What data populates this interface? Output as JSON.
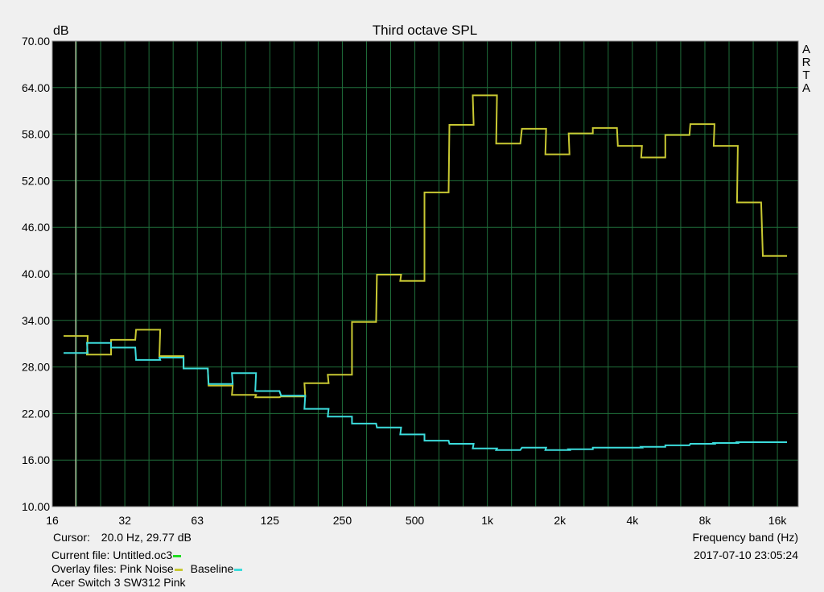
{
  "chart_data": {
    "type": "line",
    "title": "Third octave SPL",
    "ylabel": "dB",
    "xlabel": "Frequency band (Hz)",
    "ylim": [
      10,
      70
    ],
    "y_ticks": [
      "10.00",
      "16.00",
      "22.00",
      "28.00",
      "34.00",
      "40.00",
      "46.00",
      "52.00",
      "58.00",
      "64.00",
      "70.00"
    ],
    "x_ticks": [
      "16",
      "32",
      "63",
      "125",
      "250",
      "500",
      "1k",
      "2k",
      "4k",
      "8k",
      "16k"
    ],
    "bands": [
      20,
      25,
      31.5,
      40,
      50,
      63,
      80,
      100,
      125,
      160,
      200,
      250,
      315,
      400,
      500,
      630,
      800,
      1000,
      1250,
      1600,
      2000,
      2500,
      3150,
      4000,
      5000,
      6300,
      8000,
      10000,
      12500,
      16000
    ],
    "series": [
      {
        "name": "Pink Noise",
        "color": "#c8c832",
        "values": [
          32.0,
          29.6,
          31.5,
          32.8,
          29.4,
          27.8,
          25.6,
          24.4,
          24.1,
          24.2,
          25.9,
          27.0,
          33.8,
          39.9,
          39.1,
          50.5,
          59.2,
          63.0,
          56.8,
          58.7,
          55.4,
          58.1,
          58.8,
          56.5,
          55.0,
          57.9,
          59.3,
          56.5,
          49.2,
          42.3
        ]
      },
      {
        "name": "Baseline",
        "color": "#3cdcdc",
        "values": [
          29.8,
          31.1,
          30.5,
          28.9,
          29.2,
          27.8,
          25.8,
          27.2,
          24.9,
          24.3,
          22.6,
          21.6,
          20.7,
          20.2,
          19.3,
          18.5,
          18.1,
          17.5,
          17.3,
          17.6,
          17.3,
          17.4,
          17.6,
          17.6,
          17.7,
          17.9,
          18.1,
          18.2,
          18.3,
          18.3
        ]
      }
    ],
    "side_label": [
      "A",
      "R",
      "T",
      "A"
    ],
    "cursor": {
      "label": "Cursor:",
      "freq_hz": 20,
      "text": "20.0 Hz, 29.77 dB"
    },
    "grid": true,
    "legend": "bottom-left"
  },
  "footer": {
    "cursor_label": "Cursor:",
    "cursor_value": "20.0 Hz, 29.77 dB",
    "current_file": "Current file: Untitled.oc3",
    "current_color": "#22dd22",
    "overlay_label": "Overlay files: Pink Noise",
    "overlay_pink_color": "#c8c832",
    "overlay_baseline": "Baseline",
    "overlay_baseline_color": "#3cdcdc",
    "device": "Acer Switch 3 SW312 Pink",
    "timestamp": "2017-07-10  23:05:24"
  }
}
